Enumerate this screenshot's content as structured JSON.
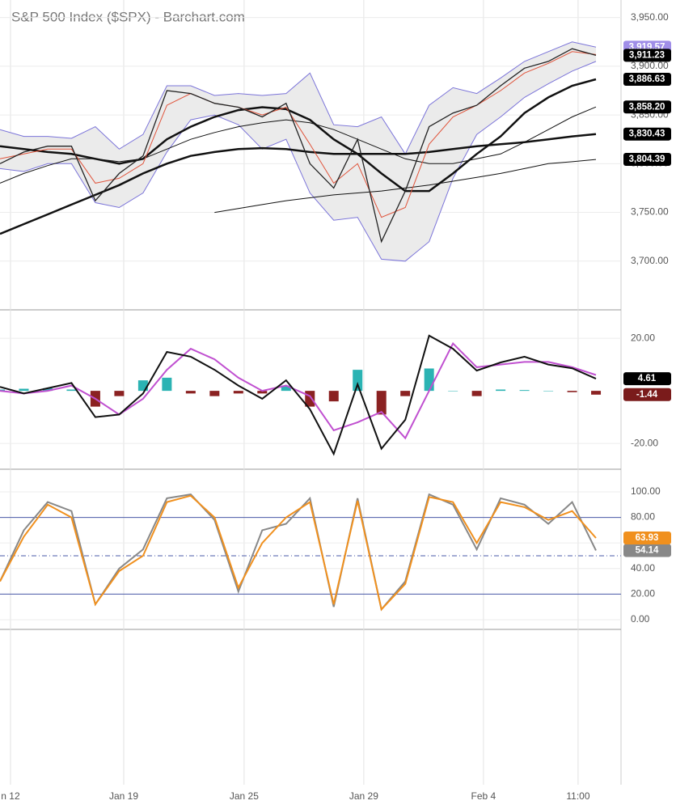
{
  "chart_data": [
    {
      "type": "line",
      "title": "S&P 500 Index ($SPX) - Barchart.com",
      "x": [
        0,
        1,
        2,
        3,
        4,
        5,
        6,
        7,
        8,
        9,
        10,
        11,
        12,
        13,
        14,
        15,
        16,
        17,
        18,
        19,
        20,
        21,
        22,
        23,
        24,
        25
      ],
      "xlim": [
        0,
        26.05
      ],
      "xticks": [
        {
          "value": 0.44,
          "label": "n 12"
        },
        {
          "value": 5.19,
          "label": "Jan 19"
        },
        {
          "value": 10.24,
          "label": "Jan 25"
        },
        {
          "value": 15.26,
          "label": "Jan 29"
        },
        {
          "value": 20.28,
          "label": "Feb 4"
        },
        {
          "value": 24.25,
          "label": "11:00"
        }
      ],
      "ylim": [
        3650,
        3968
      ],
      "yticks": [
        {
          "value": 3700,
          "label": "3,700.00"
        },
        {
          "value": 3750,
          "label": "3,750.00"
        },
        {
          "value": 3800,
          "label": "3,800.00"
        },
        {
          "value": 3850,
          "label": "3,850.00"
        },
        {
          "value": 3900,
          "label": "3,900.00"
        },
        {
          "value": 3950,
          "label": "3,950.00"
        }
      ],
      "grid": true,
      "band_color": "#ebebeb",
      "series": [
        {
          "color": "#7b74d9",
          "width": 1,
          "values": [
            3835,
            3828,
            3828,
            3826,
            3838,
            3815,
            3830,
            3880,
            3880,
            3870,
            3872,
            3870,
            3872,
            3893,
            3840,
            3838,
            3848,
            3810,
            3860,
            3878,
            3872,
            3888,
            3905,
            3915,
            3925,
            3919.57
          ],
          "tag": {
            "value": 3919.57,
            "label": "3,919.57"
          },
          "tag_color": "#a08ee8"
        },
        {
          "color": "#7b74d9",
          "width": 1,
          "values": [
            3795,
            3792,
            3800,
            3800,
            3760,
            3755,
            3770,
            3812,
            3845,
            3850,
            3840,
            3815,
            3825,
            3770,
            3742,
            3745,
            3702,
            3700,
            3720,
            3785,
            3830,
            3848,
            3868,
            3882,
            3895,
            3905
          ]
        },
        {
          "color": "#111111",
          "width": 1,
          "values": [
            null,
            null,
            null,
            null,
            null,
            null,
            null,
            null,
            null,
            3750,
            3754,
            3758,
            3762,
            3765,
            3768,
            3770,
            3772,
            3775,
            3778,
            3782,
            3786,
            3790,
            3795,
            3800,
            3802,
            3804.39
          ],
          "tag": {
            "value": 3804.39,
            "label": "3,804.39"
          },
          "tag_color": "#000000"
        },
        {
          "color": "#111111",
          "width": 2.5,
          "values": [
            3728,
            3738,
            3748,
            3758,
            3768,
            3778,
            3790,
            3800,
            3808,
            3812,
            3815,
            3816,
            3815,
            3812,
            3810,
            3810,
            3810,
            3810,
            3812,
            3815,
            3818,
            3820,
            3822,
            3825,
            3828,
            3830.43
          ],
          "tag": {
            "value": 3830.43,
            "label": "3,830.43"
          },
          "tag_color": "#000000"
        },
        {
          "color": "#111111",
          "width": 1,
          "values": [
            3780,
            3790,
            3798,
            3805,
            3805,
            3802,
            3805,
            3815,
            3825,
            3832,
            3838,
            3842,
            3845,
            3842,
            3835,
            3825,
            3815,
            3805,
            3800,
            3800,
            3805,
            3810,
            3822,
            3835,
            3848,
            3858.2
          ],
          "tag": {
            "value": 3858.2,
            "label": "3,858.20"
          },
          "tag_color": "#000000"
        },
        {
          "color": "#111111",
          "width": 2.5,
          "values": [
            3818,
            3815,
            3812,
            3810,
            3805,
            3800,
            3805,
            3825,
            3838,
            3848,
            3855,
            3858,
            3856,
            3845,
            3825,
            3810,
            3790,
            3772,
            3772,
            3790,
            3810,
            3828,
            3852,
            3868,
            3880,
            3886.63
          ],
          "tag": {
            "value": 3886.63,
            "label": "3,886.63"
          },
          "tag_color": "#000000"
        },
        {
          "color": "#e0533a",
          "width": 1,
          "values": [
            3805,
            3810,
            3815,
            3815,
            3780,
            3785,
            3800,
            3860,
            3872,
            3862,
            3858,
            3850,
            3858,
            3820,
            3780,
            3800,
            3745,
            3755,
            3820,
            3848,
            3860,
            3875,
            3893,
            3903,
            3915,
            3912
          ]
        },
        {
          "color": "#222222",
          "width": 1.3,
          "values": [
            3800,
            3812,
            3818,
            3818,
            3762,
            3790,
            3808,
            3875,
            3872,
            3862,
            3858,
            3848,
            3862,
            3800,
            3775,
            3825,
            3720,
            3772,
            3838,
            3852,
            3860,
            3880,
            3898,
            3905,
            3918,
            3911.23
          ],
          "tag": {
            "value": 3911.23,
            "label": "3,911.23"
          },
          "tag_color": "#000000"
        }
      ]
    },
    {
      "type": "line",
      "ylim": [
        -29.8,
        30.8
      ],
      "yticks": [
        {
          "value": -20,
          "label": "-20.00"
        },
        {
          "value": 20,
          "label": "20.00"
        }
      ],
      "grid": true,
      "series": [
        {
          "type": "bar",
          "color": "#2bb3b3",
          "negative_color": "#8b2222",
          "values": [
            0.5,
            0.8,
            1,
            0.5,
            -6,
            -2,
            4,
            5,
            -1,
            -2,
            -1,
            -1,
            2,
            -6,
            -4,
            8,
            -9,
            -2,
            8.5,
            0,
            -2,
            0.5,
            0.3,
            0,
            -0.5,
            -1.44
          ],
          "tag": {
            "value": -1.44,
            "label": "-1.44"
          },
          "tag_color": "#7a1b1b"
        },
        {
          "color": "#c050d0",
          "width": 2,
          "values": [
            0,
            -1,
            0,
            2,
            -3,
            -9,
            -3,
            8,
            16,
            12,
            5,
            0,
            2,
            -2,
            -15,
            -12,
            -8,
            -18,
            0,
            18,
            9,
            10,
            11,
            11,
            9,
            6.05
          ]
        },
        {
          "color": "#111111",
          "width": 2,
          "values": [
            1.5,
            -1,
            1,
            3,
            -10,
            -9,
            -1,
            14.8,
            13,
            8,
            2,
            -3,
            4,
            -7,
            -24,
            2.5,
            -22,
            -11,
            21,
            16,
            7.7,
            10.8,
            13,
            10,
            8.6,
            4.61
          ],
          "tag": {
            "value": 4.61,
            "label": "4.61"
          },
          "tag_color": "#000000"
        }
      ]
    },
    {
      "type": "line",
      "ylim": [
        -7.6,
        117.7
      ],
      "yticks": [
        {
          "value": 0,
          "label": "0.00"
        },
        {
          "value": 20,
          "label": "20.00"
        },
        {
          "value": 40,
          "label": "40.00"
        },
        {
          "value": 60,
          "label": "60.00"
        },
        {
          "value": 80,
          "label": "80.00"
        },
        {
          "value": 100,
          "label": "100.00"
        }
      ],
      "grid": true,
      "levels": [
        {
          "value": 80,
          "dash": "none"
        },
        {
          "value": 50,
          "dash": "6 3 1 3"
        },
        {
          "value": 20,
          "dash": "none"
        }
      ],
      "level_color": "#4a5aa8",
      "series": [
        {
          "color": "#888888",
          "width": 2,
          "values": [
            30,
            70,
            92,
            85,
            12,
            40,
            55,
            95,
            98,
            78,
            22,
            70,
            75,
            95,
            10,
            95,
            8,
            30,
            98,
            90,
            55,
            95,
            90,
            75,
            92,
            54.14
          ],
          "tag": {
            "value": 54.14,
            "label": "54.14"
          },
          "tag_color": "#888888"
        },
        {
          "color": "#f0901e",
          "width": 2,
          "values": [
            30,
            65,
            90,
            80,
            12,
            38,
            50,
            92,
            97,
            80,
            25,
            60,
            80,
            92,
            12,
            93,
            8,
            28,
            96,
            92,
            60,
            92,
            88,
            78,
            85,
            63.93
          ],
          "tag": {
            "value": 63.93,
            "label": "63.93"
          },
          "tag_color": "#f0901e"
        }
      ]
    }
  ]
}
